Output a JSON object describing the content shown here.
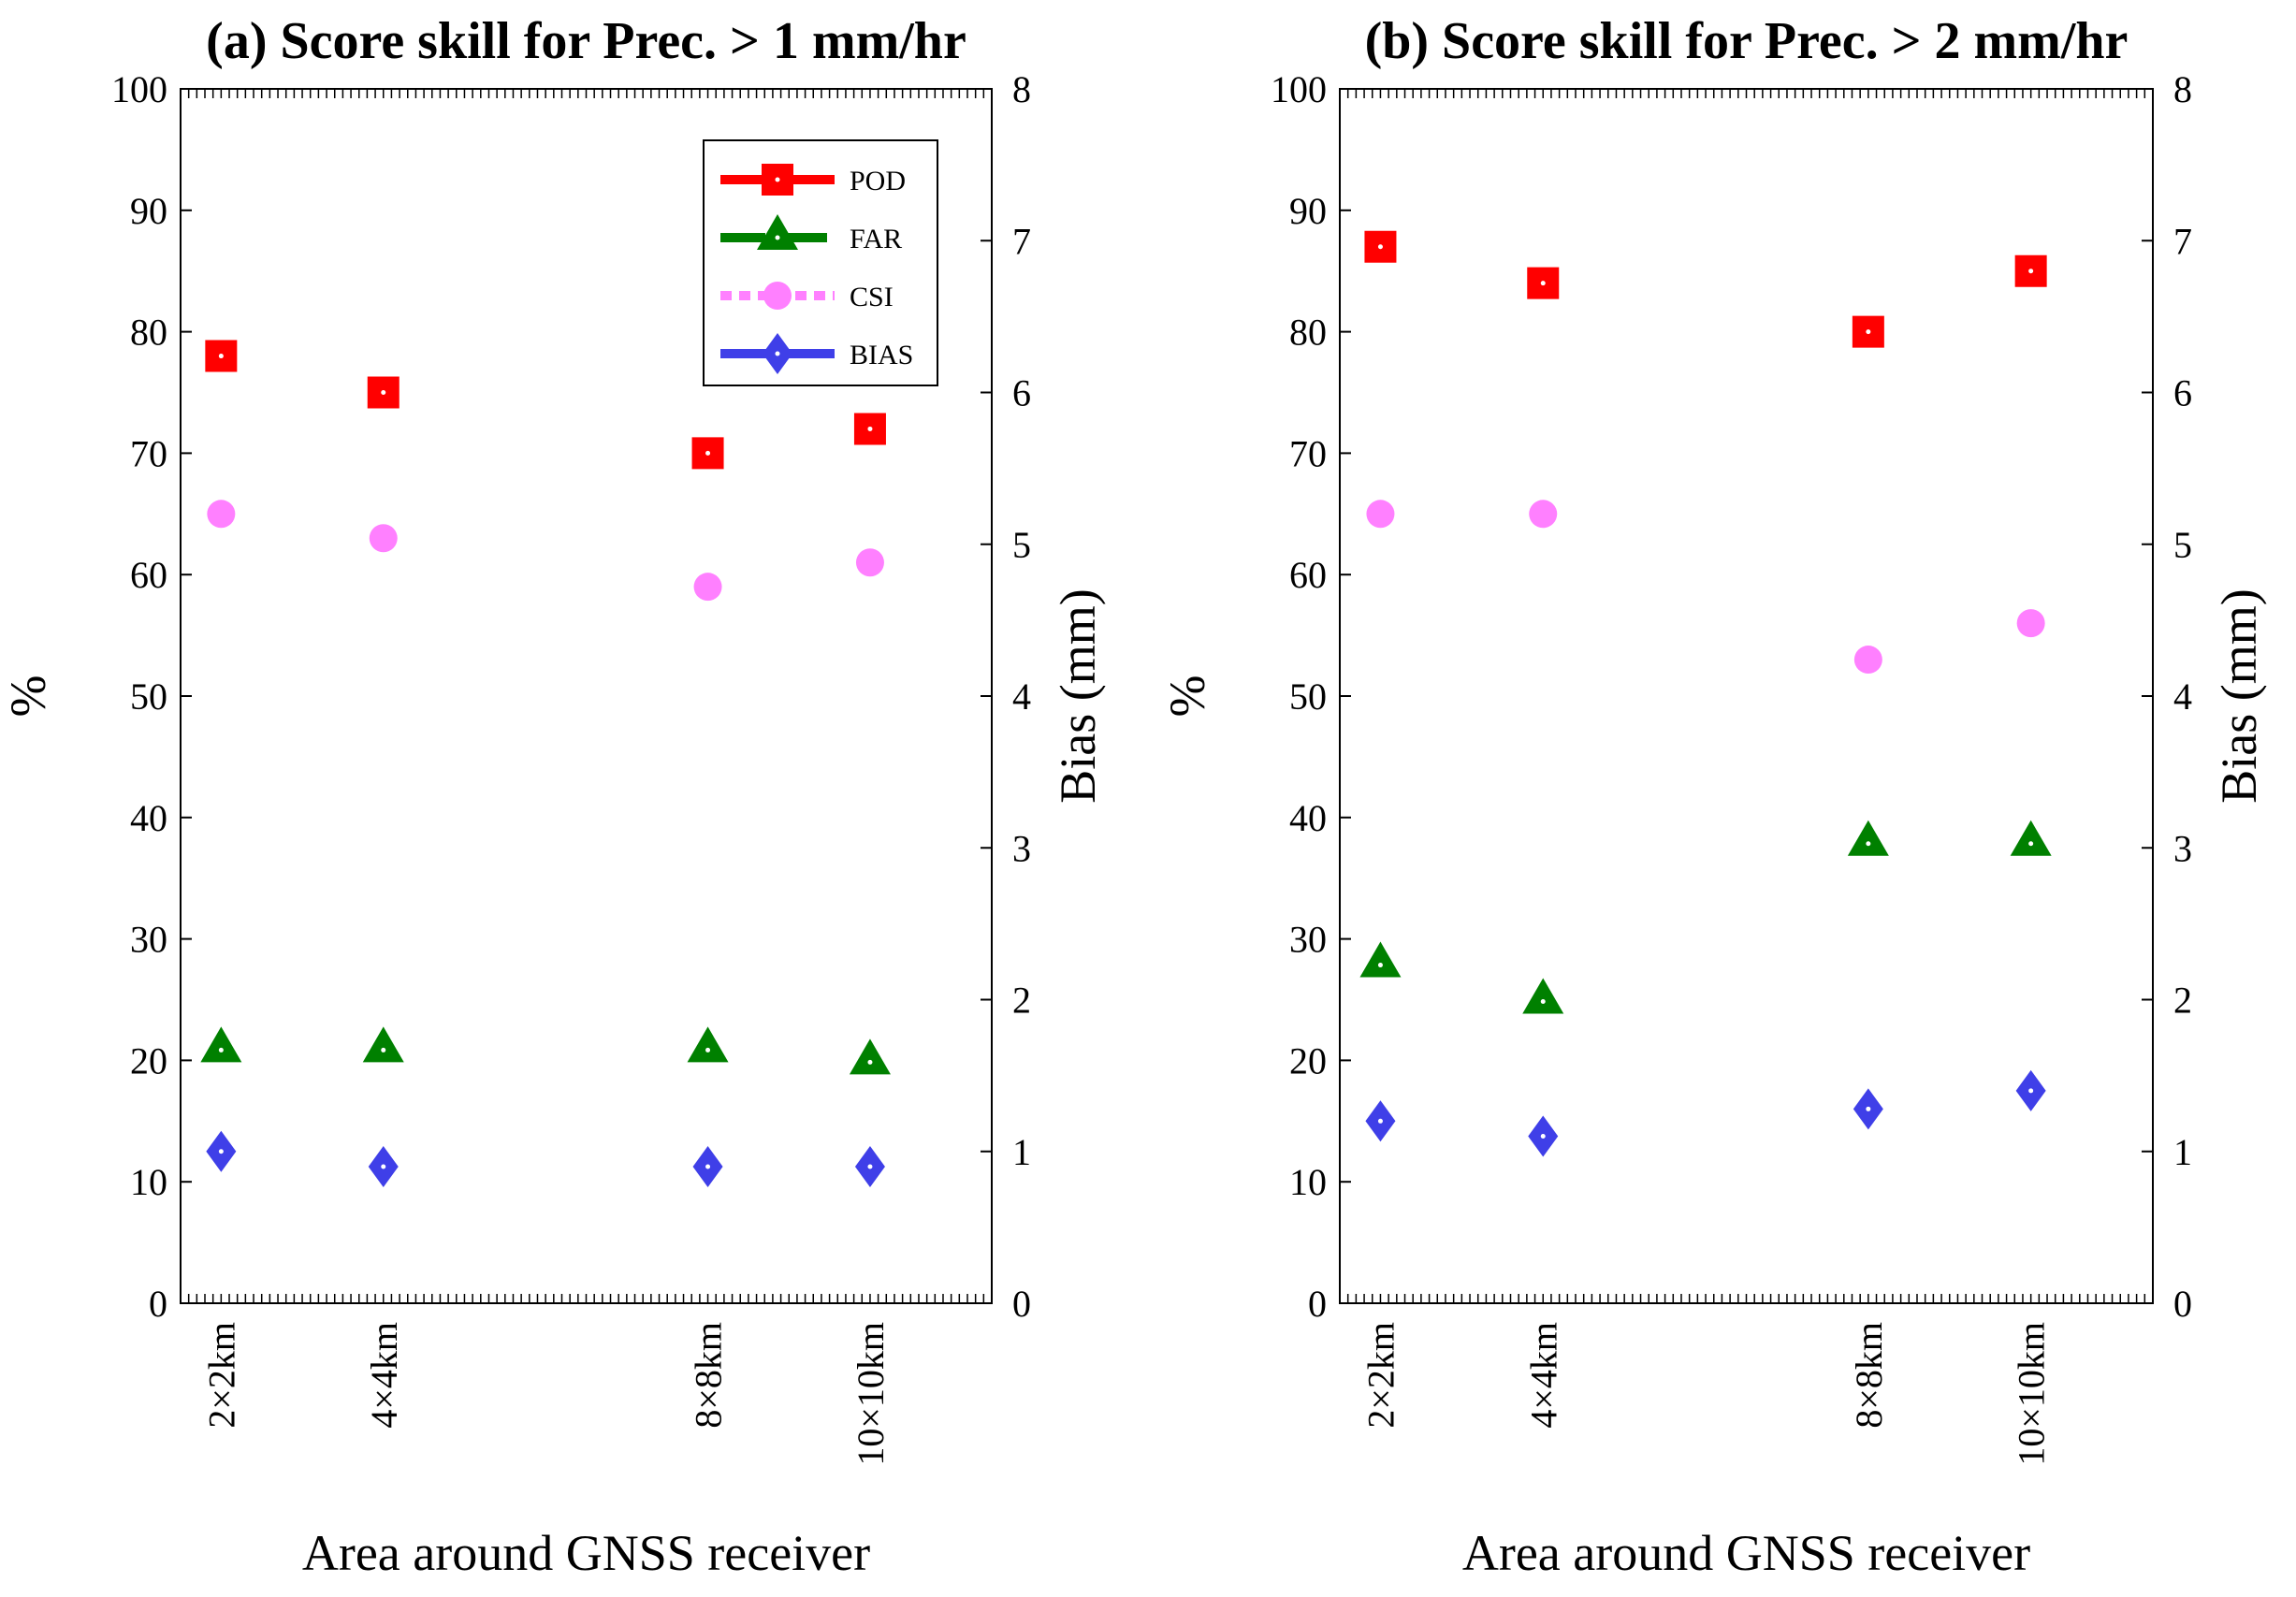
{
  "chart_data": [
    {
      "type": "scatter",
      "title": "(a) Score skill for Prec. > 1 mm/hr",
      "xlabel": "Area around GNSS receiver",
      "ylabel": "%",
      "y2label": "Bias (mm)",
      "ylim": [
        0,
        100
      ],
      "y2lim": [
        0,
        8
      ],
      "yticks": [
        "0",
        "10",
        "20",
        "30",
        "40",
        "50",
        "60",
        "70",
        "80",
        "90",
        "100"
      ],
      "y2ticks": [
        "0",
        "1",
        "2",
        "3",
        "4",
        "5",
        "6",
        "7",
        "8"
      ],
      "x_positions": [
        2,
        4,
        8,
        10
      ],
      "categories": [
        "2×2km",
        "4×4km",
        "8×8km",
        "10×10km"
      ],
      "series": [
        {
          "name": "POD",
          "axis": "left",
          "values": [
            78,
            75,
            70,
            72
          ]
        },
        {
          "name": "FAR",
          "axis": "left",
          "values": [
            21,
            21,
            21,
            20
          ]
        },
        {
          "name": "CSI",
          "axis": "left",
          "values": [
            65,
            63,
            59,
            61
          ]
        },
        {
          "name": "BIAS",
          "axis": "right",
          "values": [
            1.0,
            0.9,
            0.9,
            0.9
          ]
        }
      ],
      "legend_position": "top-right"
    },
    {
      "type": "scatter",
      "title": "(b) Score skill for Prec. > 2 mm/hr",
      "xlabel": "Area around GNSS receiver",
      "ylabel": "%",
      "y2label": "Bias (mm)",
      "ylim": [
        0,
        100
      ],
      "y2lim": [
        0,
        8
      ],
      "yticks": [
        "0",
        "10",
        "20",
        "30",
        "40",
        "50",
        "60",
        "70",
        "80",
        "90",
        "100"
      ],
      "y2ticks": [
        "0",
        "1",
        "2",
        "3",
        "4",
        "5",
        "6",
        "7",
        "8"
      ],
      "x_positions": [
        2,
        4,
        8,
        10
      ],
      "categories": [
        "2×2km",
        "4×4km",
        "8×8km",
        "10×10km"
      ],
      "series": [
        {
          "name": "POD",
          "axis": "left",
          "values": [
            87,
            84,
            80,
            85
          ]
        },
        {
          "name": "FAR",
          "axis": "left",
          "values": [
            28,
            25,
            38,
            38
          ]
        },
        {
          "name": "CSI",
          "axis": "left",
          "values": [
            65,
            65,
            53,
            56
          ]
        },
        {
          "name": "BIAS",
          "axis": "right",
          "values": [
            1.2,
            1.1,
            1.28,
            1.4
          ]
        }
      ]
    }
  ],
  "colors": {
    "POD": "#ff0000",
    "FAR": "#008000",
    "CSI": "#ff80ff",
    "BIAS": "#3f3fe8"
  }
}
